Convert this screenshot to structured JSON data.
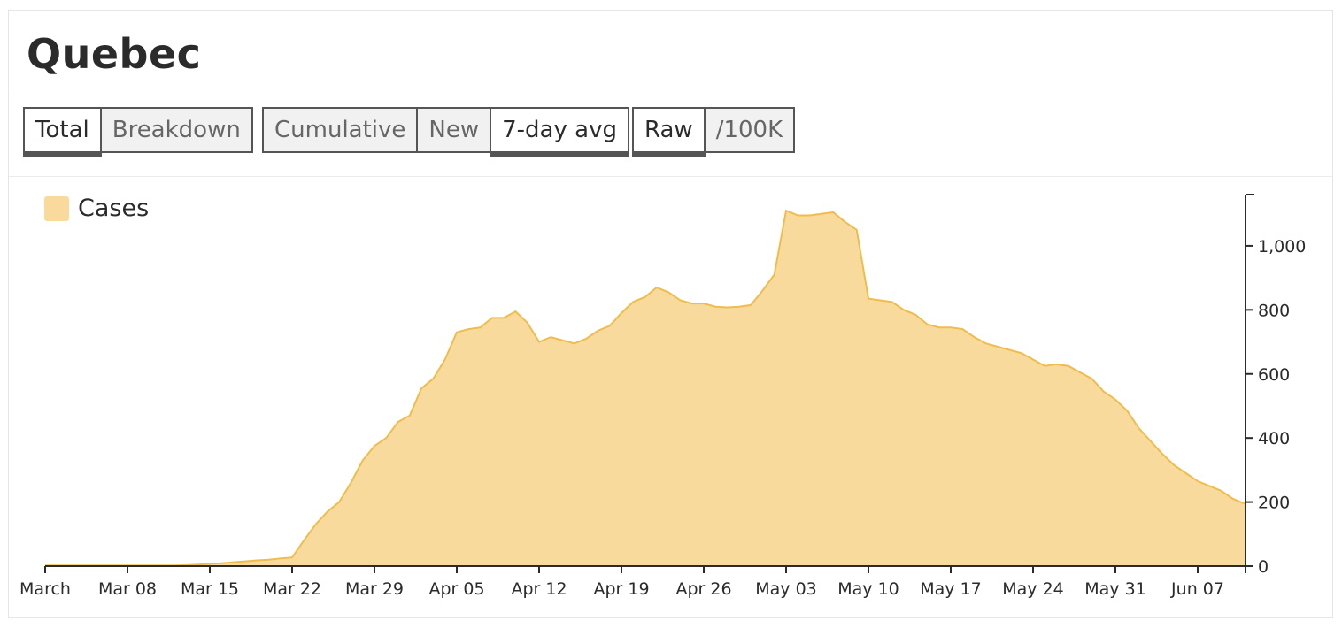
{
  "page_title": "Quebec",
  "button_groups": [
    {
      "buttons": [
        {
          "label": "Total",
          "active": true
        },
        {
          "label": "Breakdown",
          "active": false
        }
      ]
    },
    {
      "buttons": [
        {
          "label": "Cumulative",
          "active": false
        },
        {
          "label": "New",
          "active": false
        },
        {
          "label": "7-day avg",
          "active": true
        }
      ]
    },
    {
      "buttons": [
        {
          "label": "Raw",
          "active": true
        },
        {
          "label": "/100K",
          "active": false
        }
      ]
    }
  ],
  "chart_data": {
    "type": "area",
    "title": "",
    "xlabel": "",
    "ylabel": "",
    "x_tick_labels": [
      "March",
      "Mar 08",
      "Mar 15",
      "Mar 22",
      "Mar 29",
      "Apr 05",
      "Apr 12",
      "Apr 19",
      "Apr 26",
      "May 03",
      "May 10",
      "May 17",
      "May 24",
      "May 31",
      "Jun 07"
    ],
    "y_tick_labels": [
      "0",
      "200",
      "400",
      "600",
      "800",
      "1,000"
    ],
    "ylim": [
      0,
      1160
    ],
    "grid": false,
    "legend_position": "top-left",
    "fill_color": "#f8da9d",
    "line_color": "#f0bd4c",
    "series": [
      {
        "name": "Cases",
        "start_date": "2020-03-01",
        "values": [
          2,
          2,
          2,
          2,
          2,
          2,
          2,
          2,
          2,
          2,
          2,
          2,
          3,
          5,
          7,
          9,
          12,
          15,
          18,
          20,
          24,
          27,
          80,
          130,
          170,
          200,
          260,
          330,
          375,
          400,
          450,
          470,
          555,
          585,
          645,
          730,
          740,
          745,
          775,
          775,
          795,
          760,
          700,
          715,
          705,
          695,
          710,
          735,
          750,
          790,
          825,
          840,
          870,
          855,
          830,
          820,
          820,
          810,
          808,
          810,
          815,
          860,
          910,
          1110,
          1095,
          1095,
          1100,
          1105,
          1075,
          1050,
          835,
          830,
          825,
          800,
          785,
          755,
          745,
          745,
          740,
          715,
          695,
          685,
          675,
          665,
          645,
          625,
          630,
          625,
          605,
          585,
          545,
          520,
          485,
          430,
          390,
          350,
          315,
          290,
          265,
          250,
          235,
          210,
          195
        ]
      }
    ]
  }
}
